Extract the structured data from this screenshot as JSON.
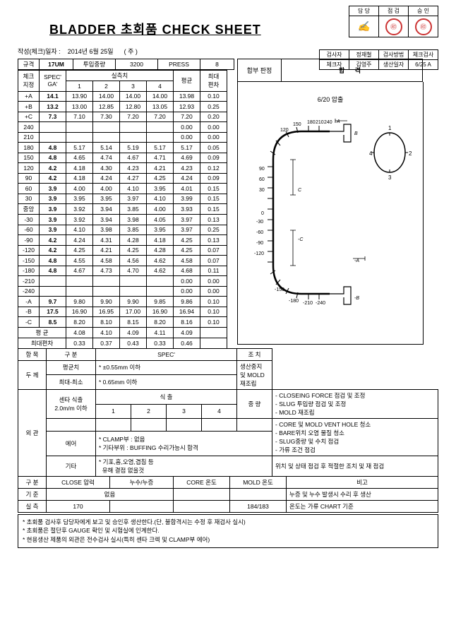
{
  "title": "BLADDER 초회품 CHECK SHEET",
  "approval_headers": [
    "담 당",
    "점 검",
    "승 인"
  ],
  "date_line_label": "작성(체크)일자 :",
  "date_line_value": "2014년 6월 25일",
  "date_line_suffix": "( 주 )",
  "info_rows": [
    [
      "검사자",
      "정재철",
      "검사방법",
      "체크검사"
    ],
    [
      "체크자",
      "김영주",
      "생산일자",
      "6/25 A"
    ]
  ],
  "spec_row": {
    "규격": "규격",
    "규격v": "17UM",
    "투입중량": "투입중량",
    "투입중량v": "3200",
    "press": "PRESS",
    "pressv": "8"
  },
  "data_header1": {
    "체크지정": "체크\n지정",
    "spec": "SPEC'\nGA'",
    "실측치": "실측치",
    "평균": "평균",
    "최대편차": "최대\n편차"
  },
  "data_cols": [
    "1",
    "2",
    "3",
    "4"
  ],
  "rows": [
    {
      "k": "+A",
      "g": "14.1",
      "v": [
        "13.90",
        "14.00",
        "14.00",
        "14.00"
      ],
      "m": "13.98",
      "d": "0.10"
    },
    {
      "k": "+B",
      "g": "13.2",
      "v": [
        "13.00",
        "12.85",
        "12.80",
        "13.05"
      ],
      "m": "12.93",
      "d": "0.25"
    },
    {
      "k": "+C",
      "g": "7.3",
      "v": [
        "7.10",
        "7.30",
        "7.20",
        "7.20"
      ],
      "m": "7.20",
      "d": "0.20"
    },
    {
      "k": "240",
      "g": "",
      "v": [
        "",
        "",
        "",
        ""
      ],
      "m": "0.00",
      "d": "0.00"
    },
    {
      "k": "210",
      "g": "",
      "v": [
        "",
        "",
        "",
        ""
      ],
      "m": "0.00",
      "d": "0.00"
    },
    {
      "k": "180",
      "g": "4.8",
      "v": [
        "5.17",
        "5.14",
        "5.19",
        "5.17"
      ],
      "m": "5.17",
      "d": "0.05"
    },
    {
      "k": "150",
      "g": "4.8",
      "v": [
        "4.65",
        "4.74",
        "4.67",
        "4.71"
      ],
      "m": "4.69",
      "d": "0.09"
    },
    {
      "k": "120",
      "g": "4.2",
      "v": [
        "4.18",
        "4.30",
        "4.23",
        "4.21"
      ],
      "m": "4.23",
      "d": "0.12"
    },
    {
      "k": "90",
      "g": "4.2",
      "v": [
        "4.18",
        "4.24",
        "4.27",
        "4.25"
      ],
      "m": "4.24",
      "d": "0.09"
    },
    {
      "k": "60",
      "g": "3.9",
      "v": [
        "4.00",
        "4.00",
        "4.10",
        "3.95"
      ],
      "m": "4.01",
      "d": "0.15"
    },
    {
      "k": "30",
      "g": "3.9",
      "v": [
        "3.95",
        "3.95",
        "3.97",
        "4.10"
      ],
      "m": "3.99",
      "d": "0.15"
    },
    {
      "k": "중앙",
      "g": "3.9",
      "v": [
        "3.92",
        "3.94",
        "3.85",
        "4.00"
      ],
      "m": "3.93",
      "d": "0.15"
    },
    {
      "k": "-30",
      "g": "3.9",
      "v": [
        "3.92",
        "3.94",
        "3.98",
        "4.05"
      ],
      "m": "3.97",
      "d": "0.13"
    },
    {
      "k": "-60",
      "g": "3.9",
      "v": [
        "4.10",
        "3.98",
        "3.85",
        "3.95"
      ],
      "m": "3.97",
      "d": "0.25"
    },
    {
      "k": "-90",
      "g": "4.2",
      "v": [
        "4.24",
        "4.31",
        "4.28",
        "4.18"
      ],
      "m": "4.25",
      "d": "0.13"
    },
    {
      "k": "-120",
      "g": "4.2",
      "v": [
        "4.25",
        "4.21",
        "4.25",
        "4.28"
      ],
      "m": "4.25",
      "d": "0.07"
    },
    {
      "k": "-150",
      "g": "4.8",
      "v": [
        "4.55",
        "4.58",
        "4.56",
        "4.62"
      ],
      "m": "4.58",
      "d": "0.07"
    },
    {
      "k": "-180",
      "g": "4.8",
      "v": [
        "4.67",
        "4.73",
        "4.70",
        "4.62"
      ],
      "m": "4.68",
      "d": "0.11"
    },
    {
      "k": "-210",
      "g": "",
      "v": [
        "",
        "",
        "",
        ""
      ],
      "m": "0.00",
      "d": "0.00"
    },
    {
      "k": "-240",
      "g": "",
      "v": [
        "",
        "",
        "",
        ""
      ],
      "m": "0.00",
      "d": "0.00"
    },
    {
      "k": "-A",
      "g": "9.7",
      "v": [
        "9.80",
        "9.90",
        "9.90",
        "9.85"
      ],
      "m": "9.86",
      "d": "0.10"
    },
    {
      "k": "-B",
      "g": "17.5",
      "v": [
        "16.90",
        "16.95",
        "17.00",
        "16.90"
      ],
      "m": "16.94",
      "d": "0.10"
    },
    {
      "k": "-C",
      "g": "8.5",
      "v": [
        "8.20",
        "8.10",
        "8.15",
        "8.20"
      ],
      "m": "8.16",
      "d": "0.10"
    },
    {
      "k": "평 균",
      "g": "",
      "v": [
        "4.08",
        "4.10",
        "4.09",
        "4.11"
      ],
      "m": "4.09",
      "d": ""
    },
    {
      "k": "최대편차",
      "g": "",
      "v": [
        "0.33",
        "0.37",
        "0.43",
        "0.33"
      ],
      "m": "0.46",
      "d": ""
    }
  ],
  "result": {
    "label": "합부 판정",
    "value": "합 격"
  },
  "diagram_title": "6/20 압출",
  "diagram_labels": [
    "180",
    "210",
    "240",
    "150",
    "120",
    "90",
    "60",
    "30",
    "0",
    "-30",
    "-60",
    "-90",
    "-120",
    "-150",
    "-180",
    "-210",
    "-240",
    "A",
    "B",
    "C",
    "-A",
    "-B",
    "-C",
    "1",
    "2",
    "3",
    "4"
  ],
  "lower_header": {
    "항목": "항 목",
    "구분": "구 분",
    "spec": "SPEC'",
    "조치": "조   치"
  },
  "lower": {
    "두께": "두 께",
    "평균치": "평균치",
    "평균치v": "* ±0.55mm 이하",
    "최대최소": "최대-최소",
    "최대최소v": "* 0.65mm 이하",
    "두께조치": "생산중지 및 MOLD 재조립",
    "외관": "외 관",
    "센타식출": "센타 식출\n2.0m/m 이하",
    "식출": "식   출",
    "중량": "중 량",
    "식출cols": [
      "1",
      "2",
      "3",
      "4"
    ],
    "외관조치1": "- CLOSEING FORCE 점검 및 조정\n- SLUG 투입량 점검 및 조정\n- MOLD 재조립",
    "에어": "에어",
    "에어v": "* CLAMP부 : 없음\n* 기타부위 : BUFFING 수리가능시 합격",
    "에어조치": "- CORE 및 MOLD VENT HOLE 청소\n- BARE위치 오염 물질 청소\n- SLUG중량 및 수치 점검\n- 가류 조건 점검",
    "기타": "기타",
    "기타v": "* 기포,흠,오염,겹침 등\n  유해 결점 없을것",
    "기타조치": "위치 및 상태 점검 후 적절한 조치 및  재 점검"
  },
  "bottom_header": [
    "구 분",
    "CLOSE 압력",
    "누수/누증",
    "CORE 온도",
    "MOLD 온도",
    "비고"
  ],
  "bottom_rows": [
    [
      "기 준",
      "",
      "없음",
      "",
      "",
      "누증 및 누수 발생시 수리 후 생산"
    ],
    [
      "실 측",
      "170",
      "",
      "",
      "184/183",
      "온도는 가류 CHART 기준"
    ]
  ],
  "notes": [
    "* 초회품 검사후 담당자에게 보고 및 승인후 생산한다.(단, 불합격시는 수정 후 재검사 실시)",
    "* 초회품은 절단후 GAUGE 확인 및 시험실에 인계한다.",
    "* 현용생산 제품의 외관은 전수검사 실시(특히 센타 크렉 및 CLAMP부 에어)"
  ]
}
